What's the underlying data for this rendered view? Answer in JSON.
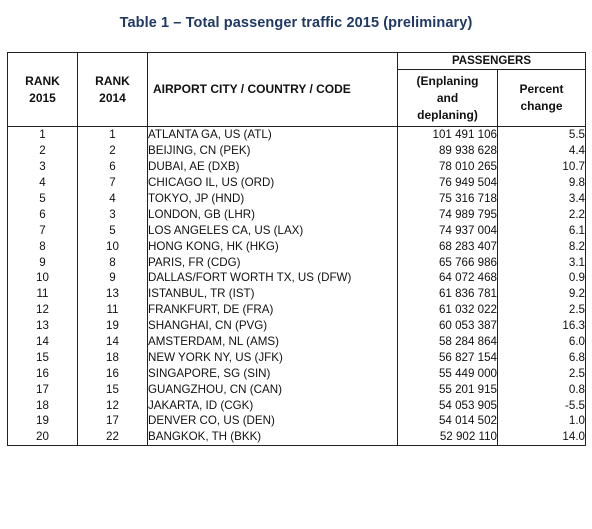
{
  "title": "Table 1 – Total passenger traffic 2015 (preliminary)",
  "headers": {
    "rank_2015": [
      "RANK",
      "2015"
    ],
    "rank_2014": [
      "RANK",
      "2014"
    ],
    "city": "AIRPORT CITY / COUNTRY / CODE",
    "passengers": "PASSENGERS",
    "enplaning": [
      "(Enplaning",
      "and",
      "deplaning)"
    ],
    "percent": [
      "Percent",
      "change"
    ]
  },
  "rows": [
    {
      "rank2015": "1",
      "rank2014": "1",
      "city": "ATLANTA GA, US (ATL)",
      "passengers": "101 491 106",
      "change": "5.5"
    },
    {
      "rank2015": "2",
      "rank2014": "2",
      "city": "BEIJING, CN (PEK)",
      "passengers": "89 938 628",
      "change": "4.4"
    },
    {
      "rank2015": "3",
      "rank2014": "6",
      "city": "DUBAI, AE (DXB)",
      "passengers": "78 010 265",
      "change": "10.7"
    },
    {
      "rank2015": "4",
      "rank2014": "7",
      "city": "CHICAGO IL, US (ORD)",
      "passengers": "76 949 504",
      "change": "9.8"
    },
    {
      "rank2015": "5",
      "rank2014": "4",
      "city": "TOKYO, JP (HND)",
      "passengers": "75 316 718",
      "change": "3.4"
    },
    {
      "rank2015": "6",
      "rank2014": "3",
      "city": "LONDON, GB (LHR)",
      "passengers": "74 989 795",
      "change": "2.2"
    },
    {
      "rank2015": "7",
      "rank2014": "5",
      "city": "LOS ANGELES CA, US (LAX)",
      "passengers": "74 937 004",
      "change": "6.1"
    },
    {
      "rank2015": "8",
      "rank2014": "10",
      "city": "HONG KONG, HK (HKG)",
      "passengers": "68 283 407",
      "change": "8.2"
    },
    {
      "rank2015": "9",
      "rank2014": "8",
      "city": "PARIS, FR (CDG)",
      "passengers": "65 766 986",
      "change": "3.1"
    },
    {
      "rank2015": "10",
      "rank2014": "9",
      "city": "DALLAS/FORT WORTH TX, US (DFW)",
      "passengers": "64 072 468",
      "change": "0.9"
    },
    {
      "rank2015": "11",
      "rank2014": "13",
      "city": "ISTANBUL, TR (IST)",
      "passengers": "61 836 781",
      "change": "9.2"
    },
    {
      "rank2015": "12",
      "rank2014": "11",
      "city": "FRANKFURT, DE (FRA)",
      "passengers": "61 032 022",
      "change": "2.5"
    },
    {
      "rank2015": "13",
      "rank2014": "19",
      "city": "SHANGHAI, CN (PVG)",
      "passengers": "60 053 387",
      "change": "16.3"
    },
    {
      "rank2015": "14",
      "rank2014": "14",
      "city": "AMSTERDAM, NL (AMS)",
      "passengers": "58 284 864",
      "change": "6.0"
    },
    {
      "rank2015": "15",
      "rank2014": "18",
      "city": "NEW YORK NY, US (JFK)",
      "passengers": "56 827 154",
      "change": "6.8"
    },
    {
      "rank2015": "16",
      "rank2014": "16",
      "city": "SINGAPORE, SG (SIN)",
      "passengers": "55 449 000",
      "change": "2.5"
    },
    {
      "rank2015": "17",
      "rank2014": "15",
      "city": "GUANGZHOU, CN (CAN)",
      "passengers": "55 201 915",
      "change": "0.8"
    },
    {
      "rank2015": "18",
      "rank2014": "12",
      "city": "JAKARTA, ID (CGK)",
      "passengers": "54 053 905",
      "change": "-5.5"
    },
    {
      "rank2015": "19",
      "rank2014": "17",
      "city": "DENVER CO, US (DEN)",
      "passengers": "54 014 502",
      "change": "1.0"
    },
    {
      "rank2015": "20",
      "rank2014": "22",
      "city": "BANGKOK, TH (BKK)",
      "passengers": "52 902 110",
      "change": "14.0"
    }
  ]
}
